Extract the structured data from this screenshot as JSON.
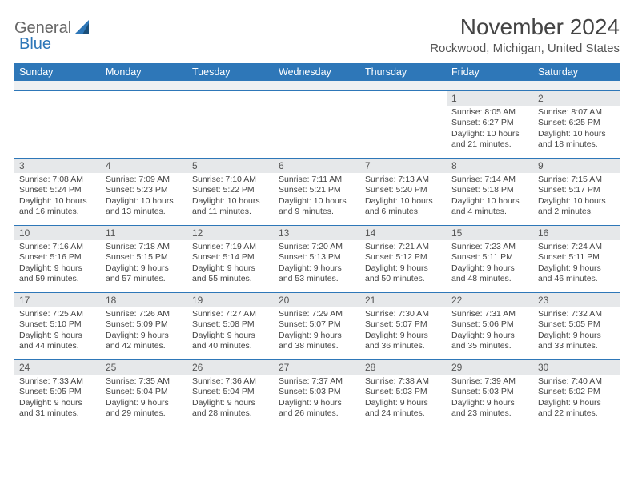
{
  "logo": {
    "part1": "General",
    "part2": "Blue"
  },
  "title": "November 2024",
  "location": "Rockwood, Michigan, United States",
  "colors": {
    "accent": "#2e77b8",
    "daybar": "#e6e8ea",
    "grid_border": "#2e77b8",
    "text": "#444444"
  },
  "day_labels": [
    "Sunday",
    "Monday",
    "Tuesday",
    "Wednesday",
    "Thursday",
    "Friday",
    "Saturday"
  ],
  "weeks": [
    [
      null,
      null,
      null,
      null,
      null,
      {
        "n": "1",
        "sr": "8:05 AM",
        "ss": "6:27 PM",
        "dl": "10 hours and 21 minutes."
      },
      {
        "n": "2",
        "sr": "8:07 AM",
        "ss": "6:25 PM",
        "dl": "10 hours and 18 minutes."
      }
    ],
    [
      {
        "n": "3",
        "sr": "7:08 AM",
        "ss": "5:24 PM",
        "dl": "10 hours and 16 minutes."
      },
      {
        "n": "4",
        "sr": "7:09 AM",
        "ss": "5:23 PM",
        "dl": "10 hours and 13 minutes."
      },
      {
        "n": "5",
        "sr": "7:10 AM",
        "ss": "5:22 PM",
        "dl": "10 hours and 11 minutes."
      },
      {
        "n": "6",
        "sr": "7:11 AM",
        "ss": "5:21 PM",
        "dl": "10 hours and 9 minutes."
      },
      {
        "n": "7",
        "sr": "7:13 AM",
        "ss": "5:20 PM",
        "dl": "10 hours and 6 minutes."
      },
      {
        "n": "8",
        "sr": "7:14 AM",
        "ss": "5:18 PM",
        "dl": "10 hours and 4 minutes."
      },
      {
        "n": "9",
        "sr": "7:15 AM",
        "ss": "5:17 PM",
        "dl": "10 hours and 2 minutes."
      }
    ],
    [
      {
        "n": "10",
        "sr": "7:16 AM",
        "ss": "5:16 PM",
        "dl": "9 hours and 59 minutes."
      },
      {
        "n": "11",
        "sr": "7:18 AM",
        "ss": "5:15 PM",
        "dl": "9 hours and 57 minutes."
      },
      {
        "n": "12",
        "sr": "7:19 AM",
        "ss": "5:14 PM",
        "dl": "9 hours and 55 minutes."
      },
      {
        "n": "13",
        "sr": "7:20 AM",
        "ss": "5:13 PM",
        "dl": "9 hours and 53 minutes."
      },
      {
        "n": "14",
        "sr": "7:21 AM",
        "ss": "5:12 PM",
        "dl": "9 hours and 50 minutes."
      },
      {
        "n": "15",
        "sr": "7:23 AM",
        "ss": "5:11 PM",
        "dl": "9 hours and 48 minutes."
      },
      {
        "n": "16",
        "sr": "7:24 AM",
        "ss": "5:11 PM",
        "dl": "9 hours and 46 minutes."
      }
    ],
    [
      {
        "n": "17",
        "sr": "7:25 AM",
        "ss": "5:10 PM",
        "dl": "9 hours and 44 minutes."
      },
      {
        "n": "18",
        "sr": "7:26 AM",
        "ss": "5:09 PM",
        "dl": "9 hours and 42 minutes."
      },
      {
        "n": "19",
        "sr": "7:27 AM",
        "ss": "5:08 PM",
        "dl": "9 hours and 40 minutes."
      },
      {
        "n": "20",
        "sr": "7:29 AM",
        "ss": "5:07 PM",
        "dl": "9 hours and 38 minutes."
      },
      {
        "n": "21",
        "sr": "7:30 AM",
        "ss": "5:07 PM",
        "dl": "9 hours and 36 minutes."
      },
      {
        "n": "22",
        "sr": "7:31 AM",
        "ss": "5:06 PM",
        "dl": "9 hours and 35 minutes."
      },
      {
        "n": "23",
        "sr": "7:32 AM",
        "ss": "5:05 PM",
        "dl": "9 hours and 33 minutes."
      }
    ],
    [
      {
        "n": "24",
        "sr": "7:33 AM",
        "ss": "5:05 PM",
        "dl": "9 hours and 31 minutes."
      },
      {
        "n": "25",
        "sr": "7:35 AM",
        "ss": "5:04 PM",
        "dl": "9 hours and 29 minutes."
      },
      {
        "n": "26",
        "sr": "7:36 AM",
        "ss": "5:04 PM",
        "dl": "9 hours and 28 minutes."
      },
      {
        "n": "27",
        "sr": "7:37 AM",
        "ss": "5:03 PM",
        "dl": "9 hours and 26 minutes."
      },
      {
        "n": "28",
        "sr": "7:38 AM",
        "ss": "5:03 PM",
        "dl": "9 hours and 24 minutes."
      },
      {
        "n": "29",
        "sr": "7:39 AM",
        "ss": "5:03 PM",
        "dl": "9 hours and 23 minutes."
      },
      {
        "n": "30",
        "sr": "7:40 AM",
        "ss": "5:02 PM",
        "dl": "9 hours and 22 minutes."
      }
    ]
  ],
  "labels": {
    "sunrise": "Sunrise:",
    "sunset": "Sunset:",
    "daylight": "Daylight:"
  }
}
